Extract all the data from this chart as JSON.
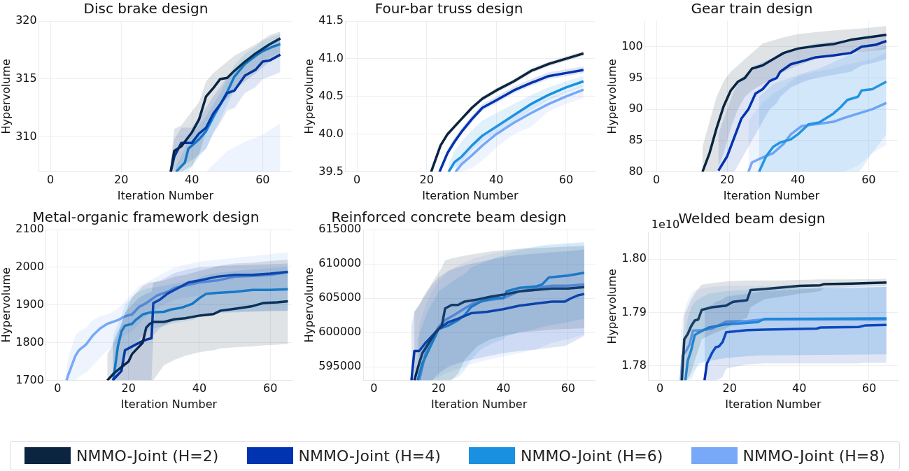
{
  "chart_data": [
    {
      "type": "line",
      "title": "Disc brake design",
      "xlabel": "Iteration Number",
      "ylabel": "Hypervolume",
      "xlim": [
        -3.25,
        68.25
      ],
      "xticks": [
        0,
        20,
        40,
        60
      ],
      "ylim": [
        307,
        320
      ],
      "yticks": [
        310,
        315,
        320
      ],
      "grid": true,
      "legend": "bottom",
      "marker": "none",
      "series": [
        {
          "name": "NMMO-Joint (H=2)",
          "color": "#0b2540",
          "x": [
            34,
            35,
            37,
            40,
            42,
            44,
            46,
            48,
            50,
            52,
            55,
            58,
            62,
            65
          ],
          "values": [
            307,
            308.8,
            309.2,
            310.4,
            311.5,
            313.5,
            314.2,
            315,
            315.1,
            315.7,
            316.5,
            317.2,
            318,
            318.5
          ],
          "lower": [
            307,
            307,
            307,
            307.5,
            308.5,
            310.5,
            311.8,
            312.8,
            313.3,
            314,
            314.8,
            315.5,
            316.5,
            317
          ],
          "upper": [
            307.8,
            310.7,
            311,
            312.2,
            313,
            314.8,
            315.5,
            316,
            316.5,
            317,
            317.5,
            318,
            318.8,
            319.1
          ]
        },
        {
          "name": "NMMO-Joint (H=4)",
          "color": "#0033b0",
          "x": [
            34,
            35,
            37,
            40,
            42,
            44,
            46,
            48,
            50,
            52,
            55,
            58,
            60,
            62,
            65
          ],
          "values": [
            307,
            308.3,
            309.5,
            309.5,
            310.3,
            310.8,
            312,
            312.8,
            313.8,
            314,
            315.3,
            315.8,
            316.5,
            316.6,
            317.1
          ],
          "lower": [
            307,
            307,
            307.5,
            308,
            308.5,
            309,
            310.3,
            311.2,
            312.3,
            312.5,
            313.8,
            314.3,
            315,
            315.2,
            315.6
          ],
          "upper": [
            307.5,
            309.8,
            310.8,
            310.8,
            311.8,
            312.5,
            313.5,
            314.3,
            315.2,
            315.5,
            316.5,
            317,
            317.8,
            318,
            318.5
          ]
        },
        {
          "name": "NMMO-Joint (H=6)",
          "color": "#1a90e0",
          "x": [
            35.5,
            38,
            39,
            42,
            44,
            46,
            48,
            50,
            52,
            55,
            58,
            60,
            63,
            65
          ],
          "values": [
            307,
            307.8,
            309,
            309.8,
            310.5,
            311.7,
            312.8,
            313.9,
            315.2,
            316.3,
            317,
            317.4,
            317.8,
            318
          ],
          "lower": [
            307,
            307,
            307,
            308.3,
            309,
            310.3,
            311.5,
            312.8,
            314,
            315.3,
            316,
            316.5,
            317,
            317.3
          ],
          "upper": [
            307.5,
            309,
            310,
            311,
            311.8,
            312.8,
            313.8,
            315,
            316.2,
            317.2,
            317.8,
            318.3,
            318.7,
            318.9
          ]
        },
        {
          "name": "NMMO-Joint (H=8)",
          "color": "#78a8f8",
          "x": [
            44,
            50,
            55,
            60,
            65
          ],
          "values": [
            null,
            null,
            null,
            null,
            null
          ],
          "lower": [
            307,
            307,
            307,
            307,
            307
          ],
          "upper": [
            307,
            308.8,
            309.6,
            310.2,
            311.2
          ]
        }
      ]
    },
    {
      "type": "line",
      "title": "Four-bar truss design",
      "xlabel": "Iteration Number",
      "ylabel": "Hypervolume",
      "xlim": [
        -3.25,
        68.25
      ],
      "xticks": [
        0,
        20,
        40,
        60
      ],
      "ylim": [
        39.5,
        41.5
      ],
      "yticks": [
        39.5,
        {
          "value": 40,
          "label": "40.0"
        },
        40.5,
        {
          "value": 41,
          "label": "41.0"
        },
        41.5
      ],
      "grid": true,
      "marker": "none",
      "series": [
        {
          "color": "#0b2540",
          "x": [
            21.3,
            24,
            26,
            28,
            30,
            33,
            36,
            40,
            45,
            50,
            55,
            60,
            65
          ],
          "values": [
            39.5,
            39.85,
            40.0,
            40.1,
            40.2,
            40.35,
            40.47,
            40.58,
            40.7,
            40.84,
            40.93,
            41.0,
            41.07
          ],
          "lower": [
            39.5,
            39.82,
            39.97,
            40.07,
            40.17,
            40.32,
            40.44,
            40.55,
            40.67,
            40.81,
            40.9,
            40.97,
            41.04
          ],
          "upper": [
            39.53,
            39.88,
            40.03,
            40.13,
            40.23,
            40.38,
            40.5,
            40.61,
            40.73,
            40.87,
            40.96,
            41.03,
            41.1
          ]
        },
        {
          "color": "#0033b0",
          "x": [
            23.7,
            26,
            28,
            30,
            33,
            36,
            40,
            45,
            50,
            55,
            60,
            65
          ],
          "values": [
            39.5,
            39.75,
            39.9,
            40.03,
            40.2,
            40.35,
            40.45,
            40.58,
            40.68,
            40.77,
            40.81,
            40.85
          ],
          "lower": [
            39.5,
            39.71,
            39.86,
            39.99,
            40.16,
            40.31,
            40.41,
            40.54,
            40.64,
            40.73,
            40.77,
            40.81
          ],
          "upper": [
            39.55,
            39.8,
            39.95,
            40.08,
            40.25,
            40.4,
            40.5,
            40.63,
            40.73,
            40.82,
            40.86,
            40.9
          ]
        },
        {
          "color": "#1a90e0",
          "x": [
            26.3,
            28,
            30,
            33,
            36,
            40,
            45,
            50,
            55,
            60,
            65
          ],
          "values": [
            39.5,
            39.63,
            39.7,
            39.85,
            39.98,
            40.1,
            40.25,
            40.4,
            40.52,
            40.62,
            40.7
          ],
          "lower": [
            39.5,
            39.55,
            39.62,
            39.78,
            39.9,
            40.02,
            40.17,
            40.32,
            40.45,
            40.55,
            40.63
          ],
          "upper": [
            39.6,
            39.78,
            39.9,
            40.05,
            40.18,
            40.28,
            40.4,
            40.52,
            40.62,
            40.7,
            40.77
          ]
        },
        {
          "color": "#78a8f8",
          "x": [
            28.3,
            30,
            33,
            36,
            40,
            45,
            50,
            55,
            60,
            65
          ],
          "values": [
            39.5,
            39.6,
            39.72,
            39.85,
            40.0,
            40.15,
            40.28,
            40.4,
            40.5,
            40.59
          ],
          "lower": [
            39.5,
            39.5,
            39.55,
            39.65,
            39.82,
            40.0,
            40.1,
            40.3,
            40.4,
            40.48
          ],
          "upper": [
            39.6,
            39.72,
            39.85,
            39.98,
            40.12,
            40.25,
            40.38,
            40.48,
            40.57,
            40.65
          ]
        }
      ]
    },
    {
      "type": "line",
      "title": "Gear train design",
      "xlabel": "Iteration Number",
      "ylabel": "Hypervolume",
      "xlim": [
        -3.25,
        68.25
      ],
      "xticks": [
        0,
        20,
        40,
        60
      ],
      "ylim": [
        80,
        104.1
      ],
      "yticks": [
        80,
        85,
        90,
        95,
        100
      ],
      "grid": true,
      "marker": "none",
      "series": [
        {
          "color": "#0b2540",
          "x": [
            13,
            15,
            17,
            19,
            21,
            23,
            25,
            27,
            30,
            33,
            36,
            40,
            45,
            50,
            55,
            60,
            65
          ],
          "values": [
            80,
            83,
            87,
            90.5,
            93,
            94.4,
            95,
            96.5,
            97,
            98,
            99,
            99.7,
            100.1,
            100.4,
            101.1,
            101.5,
            101.9
          ],
          "lower": [
            80,
            80,
            80,
            83,
            87,
            90,
            92,
            93,
            94,
            95,
            96,
            97,
            98,
            98.5,
            99,
            99.3,
            99.6
          ],
          "upper": [
            84,
            88,
            92,
            94.5,
            96,
            97,
            98,
            99,
            100.5,
            101,
            101.5,
            102,
            102.3,
            102.6,
            102.8,
            103,
            103.3
          ]
        },
        {
          "color": "#0033b0",
          "x": [
            17.5,
            20,
            22,
            24,
            26,
            28,
            30,
            32,
            34,
            35,
            38,
            42,
            45,
            50,
            55,
            58,
            62,
            65
          ],
          "values": [
            80.2,
            82.5,
            85.5,
            88.5,
            90,
            92.5,
            93.2,
            94.5,
            95,
            96,
            97.2,
            97.8,
            98.3,
            98.6,
            99,
            100,
            100.3,
            100.9
          ],
          "lower": [
            80,
            80,
            80,
            82,
            84,
            86,
            88,
            90,
            91,
            92,
            93.5,
            94.5,
            95,
            95.5,
            96,
            97,
            97.5,
            98
          ],
          "upper": [
            86,
            90,
            93,
            95,
            96,
            97,
            97.5,
            98,
            98.5,
            99,
            99.5,
            100,
            100.5,
            100.8,
            101,
            101.5,
            101.8,
            102
          ]
        },
        {
          "color": "#1a90e0",
          "x": [
            29,
            31,
            33,
            35,
            38,
            40,
            43,
            46,
            48,
            50,
            52,
            54,
            57,
            58,
            61,
            65
          ],
          "values": [
            80,
            82.5,
            84,
            84.7,
            85.2,
            86,
            87.6,
            87.9,
            88.6,
            89.3,
            90.3,
            91.5,
            92,
            93,
            93.2,
            94.4
          ],
          "lower": [
            80,
            80,
            80,
            80,
            80,
            80,
            80,
            80,
            80,
            80,
            80,
            80,
            80,
            80.5,
            83,
            86
          ],
          "upper": [
            92,
            93,
            94,
            94.5,
            95,
            95.5,
            96,
            96.5,
            97,
            97.5,
            98,
            98.5,
            99,
            99.2,
            99.5,
            100
          ]
        },
        {
          "color": "#78a8f8",
          "x": [
            26,
            27,
            30,
            33,
            36,
            38,
            41,
            45,
            50,
            53,
            57,
            61,
            65
          ],
          "values": [
            80,
            81.5,
            82.3,
            83,
            84.5,
            86,
            87.3,
            87.6,
            88,
            88.6,
            89.3,
            90,
            91
          ],
          "lower": [
            80,
            80,
            80,
            80,
            80,
            80,
            80,
            80,
            80,
            80,
            81,
            83,
            84.3
          ],
          "upper": [
            88,
            89,
            91,
            92.5,
            93.5,
            94.5,
            95.5,
            96,
            96.5,
            97,
            97.5,
            98,
            99
          ]
        }
      ]
    },
    {
      "type": "line",
      "title": "Metal-organic framework design",
      "xlabel": "Iteration Number",
      "ylabel": "Hypervolume",
      "xlim": [
        -3.25,
        66.1
      ],
      "xticks": [
        0,
        20,
        40,
        60
      ],
      "ylim": [
        1700,
        2100
      ],
      "yticks": [
        1700,
        1800,
        1900,
        2000,
        2100
      ],
      "grid": true,
      "marker": "none",
      "series": [
        {
          "color": "#0b2540",
          "x": [
            14,
            16,
            18,
            20,
            21,
            23,
            24,
            25,
            26,
            27,
            30,
            33,
            36,
            40,
            44,
            46,
            50,
            55,
            58,
            62,
            65
          ],
          "values": [
            1700,
            1720,
            1735,
            1750,
            1770,
            1790,
            1800,
            1840,
            1850,
            1855,
            1855,
            1862,
            1865,
            1872,
            1876,
            1885,
            1890,
            1897,
            1905,
            1907,
            1910
          ],
          "lower": [
            1700,
            1700,
            1700,
            1700,
            1700,
            1700,
            1700,
            1700,
            1700,
            1700,
            1740,
            1755,
            1765,
            1775,
            1780,
            1785,
            1788,
            1790,
            1793,
            1795,
            1797
          ],
          "upper": [
            1770,
            1800,
            1850,
            1900,
            1920,
            1940,
            1950,
            1955,
            1960,
            1960,
            1965,
            1975,
            1980,
            1990,
            2000,
            2005,
            2010,
            2012,
            2015,
            2018,
            2020
          ]
        },
        {
          "color": "#0033b0",
          "x": [
            15.5,
            17,
            18,
            19,
            21,
            23,
            25,
            26.5,
            27,
            29,
            31,
            33,
            35,
            37,
            40,
            45,
            50,
            55,
            60,
            65
          ],
          "values": [
            1700,
            1715,
            1725,
            1780,
            1790,
            1800,
            1808,
            1812,
            1905,
            1915,
            1930,
            1940,
            1950,
            1960,
            1965,
            1975,
            1980,
            1980,
            1983,
            1988
          ],
          "lower": [
            1700,
            1700,
            1700,
            1700,
            1700,
            1700,
            1700,
            1700,
            1820,
            1840,
            1850,
            1860,
            1865,
            1870,
            1875,
            1880,
            1882,
            1883,
            1884,
            1885
          ],
          "upper": [
            1800,
            1830,
            1850,
            1880,
            1900,
            1920,
            1930,
            1935,
            1960,
            1965,
            1975,
            1985,
            1990,
            1995,
            2000,
            2003,
            2005,
            2007,
            2008,
            2010
          ]
        },
        {
          "color": "#1a90e0",
          "x": [
            15.7,
            17,
            18,
            19,
            21,
            22,
            24,
            26,
            30,
            32,
            35,
            38,
            40,
            42,
            45,
            50,
            55,
            60,
            65
          ],
          "values": [
            1700,
            1790,
            1830,
            1845,
            1850,
            1860,
            1875,
            1880,
            1882,
            1888,
            1893,
            1903,
            1918,
            1930,
            1932,
            1935,
            1940,
            1940,
            1942
          ],
          "lower": [
            1700,
            1720,
            1740,
            1760,
            1780,
            1800,
            1820,
            1835,
            1845,
            1850,
            1855,
            1860,
            1868,
            1875,
            1878,
            1880,
            1882,
            1884,
            1885
          ],
          "upper": [
            1820,
            1850,
            1870,
            1900,
            1920,
            1930,
            1940,
            1945,
            1950,
            1955,
            1960,
            1965,
            1972,
            1980,
            1985,
            1990,
            1995,
            1998,
            2000
          ]
        },
        {
          "color": "#78a8f8",
          "x": [
            2.5,
            3,
            4,
            5,
            6,
            8,
            10,
            12,
            14,
            17,
            19,
            21,
            23,
            25,
            28,
            31,
            33,
            40,
            45,
            50,
            55,
            60,
            65
          ],
          "values": [
            1700,
            1715,
            1740,
            1765,
            1780,
            1795,
            1820,
            1838,
            1850,
            1860,
            1870,
            1875,
            1895,
            1905,
            1925,
            1935,
            1945,
            1960,
            1965,
            1975,
            1977,
            1980,
            1987
          ],
          "lower": [
            1700,
            1700,
            1700,
            1700,
            1710,
            1720,
            1740,
            1760,
            1780,
            1800,
            1820,
            1830,
            1850,
            1870,
            1890,
            1905,
            1915,
            1925,
            1930,
            1935,
            1937,
            1938,
            1940
          ],
          "upper": [
            1730,
            1760,
            1790,
            1820,
            1830,
            1840,
            1860,
            1870,
            1875,
            1890,
            1910,
            1930,
            1950,
            1960,
            1975,
            1990,
            2000,
            2015,
            2020,
            2025,
            2030,
            2035,
            2040
          ]
        }
      ]
    },
    {
      "type": "line",
      "title": "Reinforced concrete beam design",
      "xlabel": "Iteration Number",
      "ylabel": "Hypervolume",
      "xlim": [
        -3.25,
        68.25
      ],
      "xticks": [
        0,
        20,
        40,
        60
      ],
      "ylim": [
        593000,
        615000
      ],
      "yticks": [
        595000,
        600000,
        605000,
        610000,
        615000
      ],
      "grid": true,
      "marker": "none",
      "series": [
        {
          "color": "#0b2540",
          "x": [
            12.5,
            14,
            15,
            17,
            19,
            21,
            22,
            24,
            26,
            28,
            32,
            36,
            40,
            45,
            50,
            55,
            60,
            65
          ],
          "values": [
            593000,
            595500,
            597000,
            598500,
            600000,
            601000,
            603500,
            604000,
            604000,
            604500,
            604800,
            605200,
            605500,
            606000,
            606200,
            606400,
            606400,
            606600
          ],
          "lower": [
            593000,
            593000,
            593000,
            593000,
            593000,
            593000,
            593000,
            593000,
            594000,
            596000,
            598000,
            599000,
            599500,
            600000,
            600200,
            600400,
            600500,
            600600
          ],
          "upper": [
            603000,
            604000,
            605000,
            606500,
            608000,
            609500,
            610500,
            610800,
            611000,
            611200,
            611500,
            611800,
            612000,
            612200,
            612300,
            612400,
            612500,
            612600
          ]
        },
        {
          "color": "#0033b0",
          "x": [
            11.6,
            12.5,
            14,
            16,
            18,
            20,
            23,
            26,
            30,
            35,
            40,
            45,
            50,
            55,
            59,
            61,
            63,
            65
          ],
          "values": [
            593000,
            597300,
            597300,
            598500,
            599500,
            600500,
            601500,
            602000,
            602800,
            603000,
            603400,
            603900,
            604200,
            604500,
            604500,
            605000,
            605400,
            605600
          ],
          "lower": [
            593000,
            593000,
            593000,
            593000,
            593000,
            594000,
            595000,
            595500,
            596000,
            596500,
            597000,
            597300,
            597500,
            597800,
            598000,
            598500,
            599000,
            599500
          ],
          "upper": [
            601000,
            603000,
            604000,
            605500,
            607000,
            608000,
            609000,
            609500,
            610000,
            610500,
            611000,
            611300,
            611500,
            611700,
            611800,
            611900,
            612000,
            612100
          ]
        },
        {
          "color": "#1a90e0",
          "x": [
            13.5,
            15,
            17,
            19,
            20,
            23,
            26,
            28,
            30,
            33,
            37,
            40,
            41,
            45,
            50,
            52,
            54,
            60,
            65
          ],
          "values": [
            593000,
            595500,
            597500,
            599500,
            600500,
            601000,
            601800,
            602500,
            603700,
            604500,
            605000,
            605000,
            606000,
            606500,
            606700,
            607000,
            608000,
            608300,
            608700
          ],
          "lower": [
            593000,
            593000,
            593000,
            593000,
            593000,
            593000,
            593500,
            594500,
            596000,
            597500,
            598500,
            599000,
            599500,
            600000,
            600500,
            600800,
            601000,
            601500,
            602000
          ],
          "upper": [
            599000,
            601000,
            603500,
            605000,
            606000,
            607000,
            608000,
            608500,
            609500,
            610000,
            610800,
            611200,
            611500,
            612000,
            612500,
            612700,
            612800,
            613000,
            613200
          ]
        },
        {
          "color": "#78a8f8",
          "x": [
            14,
            16,
            18,
            20,
            22,
            25,
            28,
            31,
            35,
            40,
            45,
            50,
            55,
            60,
            65
          ],
          "values": [
            593000,
            597000,
            599000,
            600800,
            601800,
            602600,
            603500,
            604300,
            604700,
            605000,
            606000,
            606500,
            606800,
            606800,
            607000
          ],
          "lower": [
            593000,
            593000,
            593000,
            593500,
            594000,
            594500,
            595000,
            595500,
            596000,
            596500,
            597000,
            597500,
            598500,
            599000,
            599700
          ],
          "upper": [
            601000,
            604000,
            606000,
            607500,
            608500,
            609500,
            610200,
            610800,
            611300,
            611800,
            612200,
            612500,
            612700,
            612900,
            613000
          ]
        }
      ]
    },
    {
      "type": "line",
      "title": "Welded beam design",
      "xlabel": "Iteration Number",
      "ylabel": "Hypervolume",
      "annotations": [
        "1e10"
      ],
      "xlim": [
        -3.25,
        68.25
      ],
      "xticks": [
        0,
        20,
        40,
        60
      ],
      "ylim": [
        1.7773,
        1.805
      ],
      "yticks": [
        1.78,
        1.79,
        {
          "value": 1.8,
          "label": "1.80"
        }
      ],
      "grid": true,
      "marker": "none",
      "series": [
        {
          "color": "#0b2540",
          "x": [
            6.3,
            7,
            8,
            9,
            10,
            11,
            12,
            15,
            19,
            21,
            25,
            26,
            30,
            35,
            40,
            46,
            47,
            55,
            65
          ],
          "values": [
            1.7773,
            1.785,
            1.786,
            1.7875,
            1.7885,
            1.7887,
            1.7905,
            1.791,
            1.7913,
            1.792,
            1.7923,
            1.7942,
            1.7944,
            1.7947,
            1.795,
            1.7951,
            1.7953,
            1.7954,
            1.7956
          ],
          "lower": [
            1.7773,
            1.7773,
            1.7775,
            1.779,
            1.781,
            1.783,
            1.785,
            1.786,
            1.787,
            1.788,
            1.789,
            1.791,
            1.7925,
            1.793,
            1.7935,
            1.794,
            1.7945,
            1.7948,
            1.795
          ],
          "upper": [
            1.782,
            1.7895,
            1.791,
            1.7925,
            1.7935,
            1.7945,
            1.7952,
            1.7955,
            1.7958,
            1.7959,
            1.796,
            1.796,
            1.796,
            1.796,
            1.7961,
            1.7962,
            1.7962,
            1.7962,
            1.7963
          ]
        },
        {
          "color": "#0033b0",
          "x": [
            12.8,
            13.5,
            15,
            16,
            17,
            18,
            19,
            25,
            30,
            45,
            46,
            57,
            59,
            65
          ],
          "values": [
            1.7773,
            1.7805,
            1.7825,
            1.7835,
            1.7837,
            1.7845,
            1.7863,
            1.7867,
            1.7868,
            1.787,
            1.7872,
            1.7873,
            1.7876,
            1.7877
          ],
          "lower": [
            1.7773,
            1.7773,
            1.7773,
            1.7773,
            1.7775,
            1.778,
            1.7795,
            1.7803,
            1.7805,
            1.7805,
            1.7805,
            1.7805,
            1.7806,
            1.7806
          ],
          "upper": [
            1.7905,
            1.791,
            1.7915,
            1.792,
            1.7922,
            1.7925,
            1.793,
            1.7935,
            1.794,
            1.7945,
            1.7945,
            1.7946,
            1.7947,
            1.7948
          ]
        },
        {
          "color": "#1a90e0",
          "x": [
            7.3,
            8,
            9,
            10,
            11,
            14,
            19,
            24,
            28,
            30,
            65
          ],
          "values": [
            1.7773,
            1.781,
            1.783,
            1.7858,
            1.7862,
            1.7872,
            1.7878,
            1.788,
            1.7882,
            1.7888,
            1.7889
          ],
          "lower": [
            1.7773,
            1.7773,
            1.7775,
            1.779,
            1.7805,
            1.781,
            1.7815,
            1.7818,
            1.782,
            1.782,
            1.7822
          ],
          "upper": [
            1.7855,
            1.789,
            1.791,
            1.792,
            1.7925,
            1.7935,
            1.794,
            1.7942,
            1.7943,
            1.7945,
            1.7948
          ]
        },
        {
          "color": "#78a8f8",
          "x": [
            6,
            6.5,
            7.5,
            8.5,
            9.5,
            12,
            15,
            19,
            25,
            30,
            65
          ],
          "values": [
            1.7773,
            1.782,
            1.7828,
            1.784,
            1.7866,
            1.7867,
            1.787,
            1.7883,
            1.7884,
            1.7887,
            1.7887
          ],
          "lower": [
            1.7773,
            1.7773,
            1.7775,
            1.778,
            1.779,
            1.7805,
            1.781,
            1.7815,
            1.7818,
            1.782,
            1.7822
          ],
          "upper": [
            1.786,
            1.789,
            1.7915,
            1.793,
            1.794,
            1.7945,
            1.7948,
            1.795,
            1.795,
            1.795,
            1.7952
          ]
        }
      ]
    }
  ]
}
